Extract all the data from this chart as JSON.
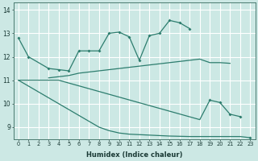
{
  "xlabel": "Humidex (Indice chaleur)",
  "bg_color": "#cce8e4",
  "line_color": "#2d7d6e",
  "grid_color": "#ffffff",
  "ylim": [
    8.5,
    14.3
  ],
  "xlim": [
    -0.5,
    23.5
  ],
  "yticks": [
    9,
    10,
    11,
    12,
    13,
    14
  ],
  "line1_x": [
    0,
    1,
    3,
    4,
    5,
    6,
    7,
    8,
    9,
    10,
    11,
    12,
    13,
    14,
    15,
    16,
    17
  ],
  "line1_y": [
    12.8,
    12.0,
    11.5,
    11.45,
    11.4,
    12.25,
    12.25,
    12.25,
    13.0,
    13.05,
    12.85,
    11.85,
    12.9,
    13.0,
    13.55,
    13.45,
    13.2
  ],
  "line2_x": [
    3,
    4,
    5,
    6,
    7,
    8,
    9,
    10,
    11,
    12,
    13,
    14,
    15,
    16,
    17,
    18,
    19,
    20,
    21
  ],
  "line2_y": [
    11.1,
    11.15,
    11.2,
    11.3,
    11.35,
    11.4,
    11.45,
    11.5,
    11.55,
    11.6,
    11.65,
    11.7,
    11.75,
    11.8,
    11.85,
    11.9,
    11.75,
    11.75,
    11.72
  ],
  "line3_x": [
    0,
    1,
    2,
    3,
    4,
    5,
    6,
    7,
    8,
    9,
    10,
    11,
    12,
    13,
    14,
    15,
    16,
    17,
    18,
    19,
    20,
    21,
    22
  ],
  "line3_y": [
    11.0,
    11.0,
    11.0,
    11.0,
    11.0,
    10.88,
    10.76,
    10.64,
    10.52,
    10.4,
    10.28,
    10.16,
    10.04,
    9.92,
    9.8,
    9.68,
    9.56,
    9.44,
    9.32,
    10.15,
    10.05,
    9.55,
    9.45
  ],
  "line3_markers": [
    19,
    20,
    21,
    22
  ],
  "line4_x": [
    0,
    1,
    2,
    3,
    4,
    5,
    6,
    7,
    8,
    9,
    10,
    11,
    12,
    13,
    14,
    15,
    16,
    17,
    18,
    19,
    20,
    21,
    22,
    23
  ],
  "line4_y": [
    11.0,
    10.75,
    10.5,
    10.25,
    10.0,
    9.75,
    9.5,
    9.25,
    9.0,
    8.85,
    8.75,
    8.7,
    8.68,
    8.66,
    8.64,
    8.62,
    8.61,
    8.6,
    8.6,
    8.6,
    8.6,
    8.6,
    8.6,
    8.55
  ],
  "line4_markers": [
    23
  ]
}
